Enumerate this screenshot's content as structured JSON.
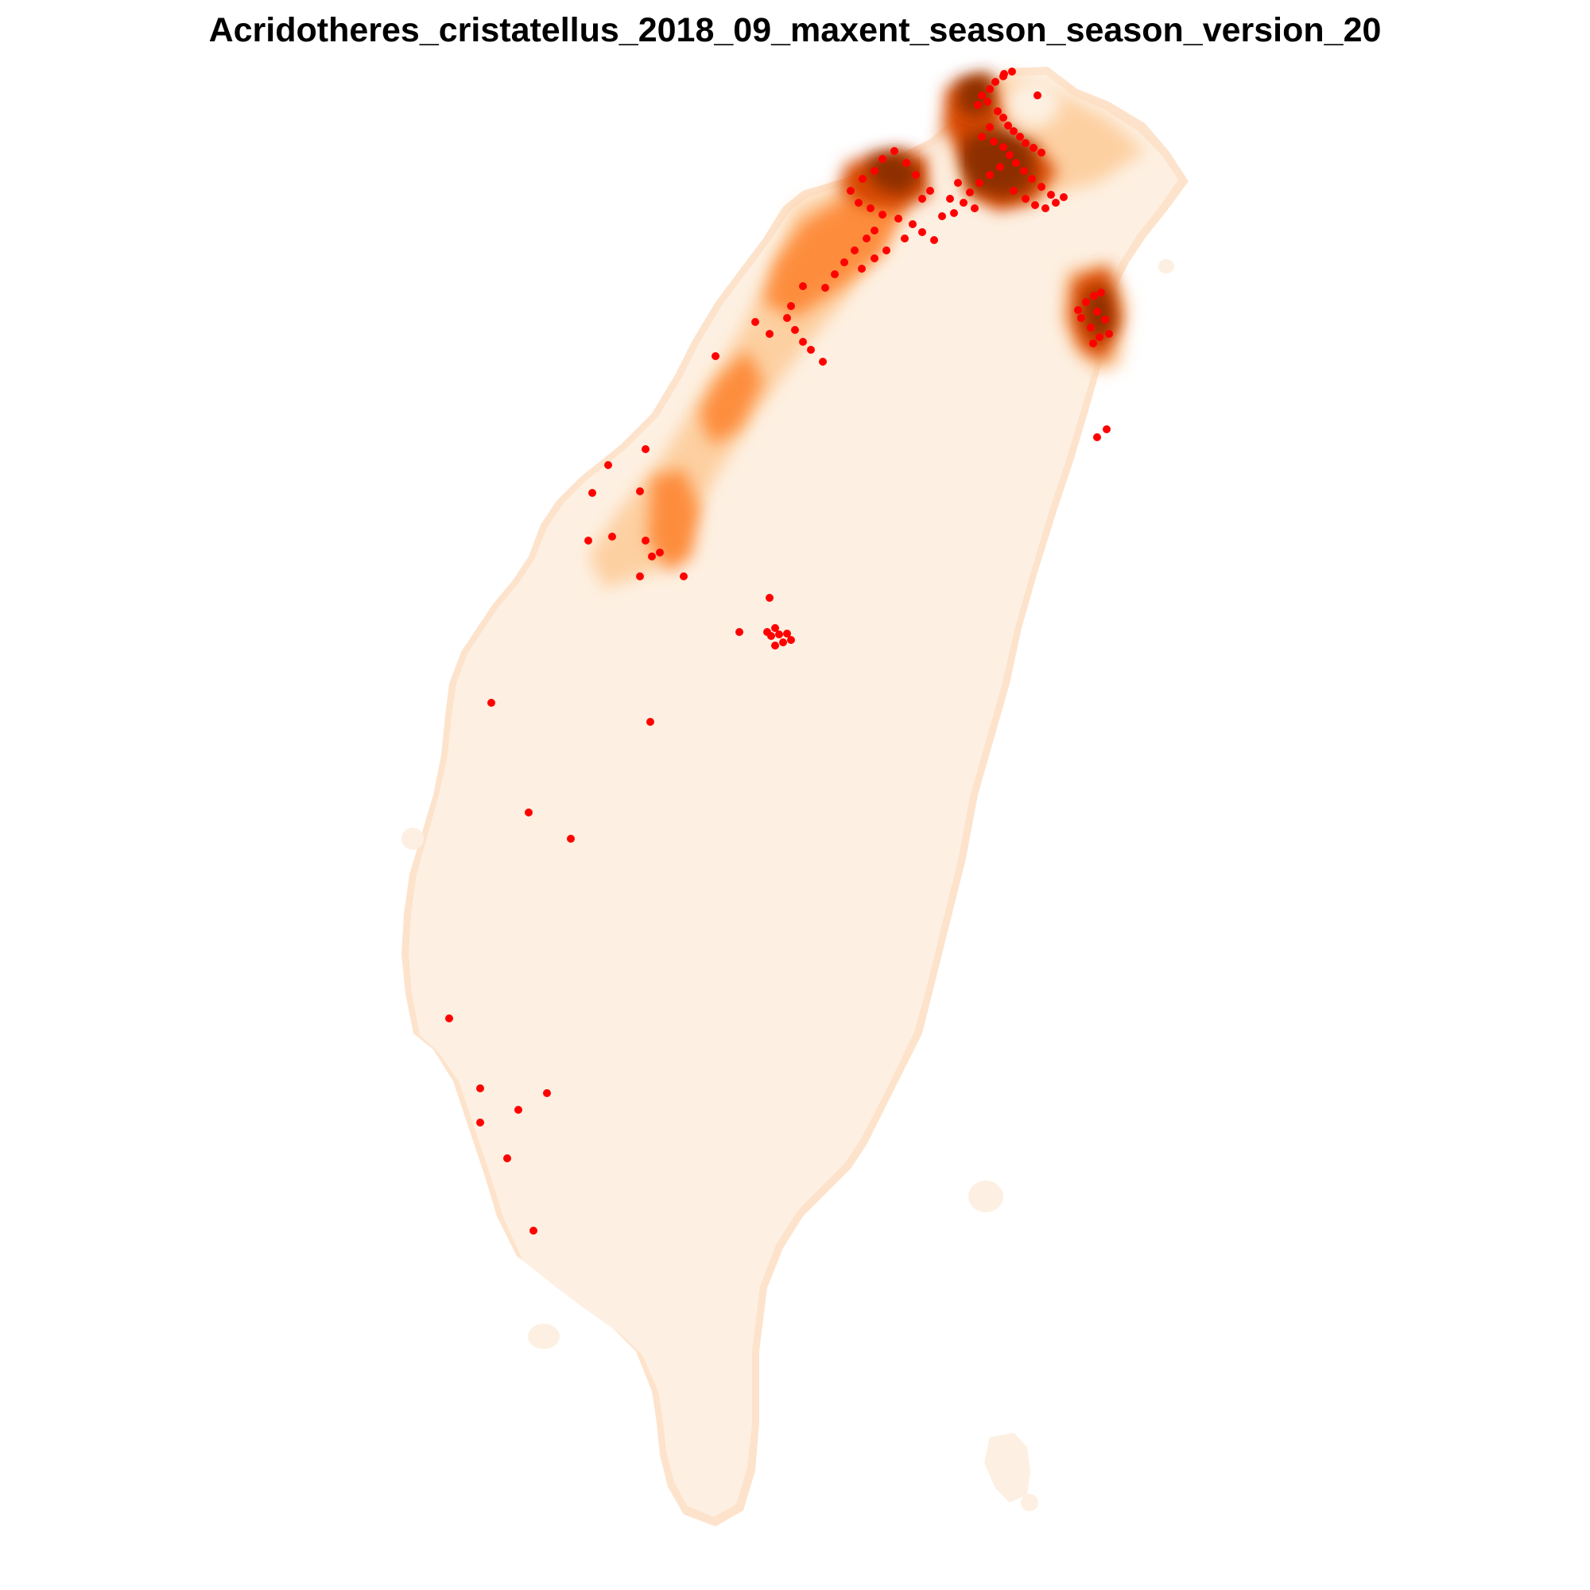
{
  "title": "Acridotheres_cristatellus_2018_09_maxent_season_season_version_20",
  "colors": {
    "land_base": "#fdf0e2",
    "land_edge": "#fde3cc",
    "low": "#fdd0a2",
    "mid": "#fd8d3c",
    "high": "#d94801",
    "very_high": "#8c2d04",
    "occurrence_point": "#ff0000"
  }
}
